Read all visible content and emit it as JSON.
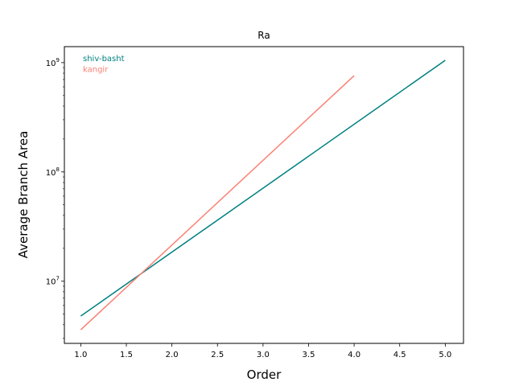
{
  "chart_data": {
    "type": "line",
    "title": "Ra",
    "xlabel": "Order",
    "ylabel": "Average Branch Area",
    "yscale": "log",
    "xlim": [
      0.82,
      5.2
    ],
    "ylim": [
      2700000,
      1400000000
    ],
    "xticks": [
      1.0,
      1.5,
      2.0,
      2.5,
      3.0,
      3.5,
      4.0,
      4.5,
      5.0
    ],
    "xtick_labels": [
      "1.0",
      "1.5",
      "2.0",
      "2.5",
      "3.0",
      "3.5",
      "4.0",
      "4.5",
      "5.0"
    ],
    "ymajor_ticks": [
      {
        "value": 10000000,
        "base": "10",
        "exp": "7"
      },
      {
        "value": 100000000,
        "base": "10",
        "exp": "8"
      },
      {
        "value": 1000000000,
        "base": "10",
        "exp": "9"
      }
    ],
    "grid": false,
    "legend_position": "upper-left",
    "series": [
      {
        "name": "shiv-basht",
        "color": "#008080",
        "x": [
          1,
          5
        ],
        "y": [
          4800000,
          1050000000
        ]
      },
      {
        "name": "kangir",
        "color": "#FA8072",
        "x": [
          1,
          4
        ],
        "y": [
          3600000,
          760000000
        ]
      }
    ]
  }
}
